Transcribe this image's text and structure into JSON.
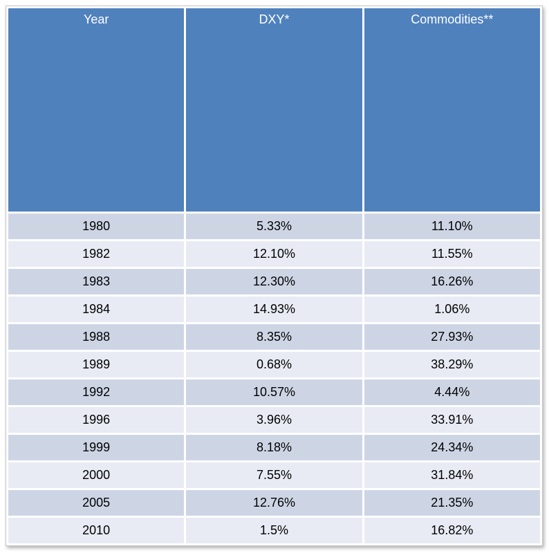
{
  "table": {
    "columns": [
      {
        "key": "year",
        "label": "Year"
      },
      {
        "key": "dxy",
        "label": "DXY*"
      },
      {
        "key": "commodities",
        "label": "Commodities**"
      }
    ],
    "rows": [
      {
        "year": "1980",
        "dxy": "5.33%",
        "commodities": "11.10%"
      },
      {
        "year": "1982",
        "dxy": "12.10%",
        "commodities": "11.55%"
      },
      {
        "year": "1983",
        "dxy": "12.30%",
        "commodities": "16.26%"
      },
      {
        "year": "1984",
        "dxy": "14.93%",
        "commodities": "1.06%"
      },
      {
        "year": "1988",
        "dxy": "8.35%",
        "commodities": "27.93%"
      },
      {
        "year": "1989",
        "dxy": "0.68%",
        "commodities": "38.29%"
      },
      {
        "year": "1992",
        "dxy": "10.57%",
        "commodities": "4.44%"
      },
      {
        "year": "1996",
        "dxy": "3.96%",
        "commodities": "33.91%"
      },
      {
        "year": "1999",
        "dxy": "8.18%",
        "commodities": "24.34%"
      },
      {
        "year": "2000",
        "dxy": "7.55%",
        "commodities": "31.84%"
      },
      {
        "year": "2005",
        "dxy": "12.76%",
        "commodities": "21.35%"
      },
      {
        "year": "2010",
        "dxy": "1.5%",
        "commodities": "16.82%"
      }
    ]
  },
  "chart_data": {
    "type": "table",
    "title": "",
    "columns": [
      "Year",
      "DXY*",
      "Commodities**"
    ],
    "rows": [
      [
        "1980",
        "5.33%",
        "11.10%"
      ],
      [
        "1982",
        "12.10%",
        "11.55%"
      ],
      [
        "1983",
        "12.30%",
        "16.26%"
      ],
      [
        "1984",
        "14.93%",
        "1.06%"
      ],
      [
        "1988",
        "8.35%",
        "27.93%"
      ],
      [
        "1989",
        "0.68%",
        "38.29%"
      ],
      [
        "1992",
        "10.57%",
        "4.44%"
      ],
      [
        "1996",
        "3.96%",
        "33.91%"
      ],
      [
        "1999",
        "8.18%",
        "24.34%"
      ],
      [
        "2000",
        "7.55%",
        "31.84%"
      ],
      [
        "2005",
        "12.76%",
        "21.35%"
      ],
      [
        "2010",
        "1.5%",
        "16.82%"
      ]
    ]
  },
  "colors": {
    "header_bg": "#4f81bd",
    "header_text": "#ffffff",
    "row_dark": "#cdd5e5",
    "row_light": "#e8ebf4",
    "cell_text": "#000000",
    "border": "#c6c6c6"
  }
}
